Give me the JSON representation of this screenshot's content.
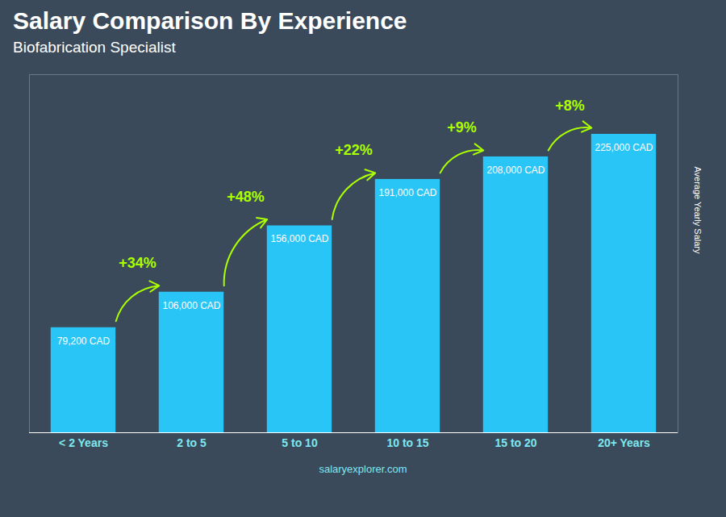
{
  "chart_data": {
    "type": "bar",
    "title": "Salary Comparison By Experience",
    "subtitle": "Biofabrication Specialist",
    "ylabel": "Average Yearly Salary",
    "caption": "salaryexplorer.com",
    "categories": [
      "< 2 Years",
      "2 to 5",
      "5 to 10",
      "10 to 15",
      "15 to 20",
      "20+ Years"
    ],
    "values": [
      79200,
      106000,
      156000,
      191000,
      208000,
      225000
    ],
    "value_labels": [
      "79,200 CAD",
      "106,000 CAD",
      "156,000 CAD",
      "191,000 CAD",
      "208,000 CAD",
      "225,000 CAD"
    ],
    "data_labels": true,
    "annotations": [
      {
        "text": "+34%",
        "color": "#aaff00"
      },
      {
        "text": "+48%",
        "color": "#aaff00"
      },
      {
        "text": "+22%",
        "color": "#aaff00"
      },
      {
        "text": "+9%",
        "color": "#aaff00"
      },
      {
        "text": "+8%",
        "color": "#aaff00"
      }
    ],
    "color": "#29c5f6",
    "ylim": [
      0,
      270000
    ],
    "tick_labels": "x",
    "grid": false
  }
}
